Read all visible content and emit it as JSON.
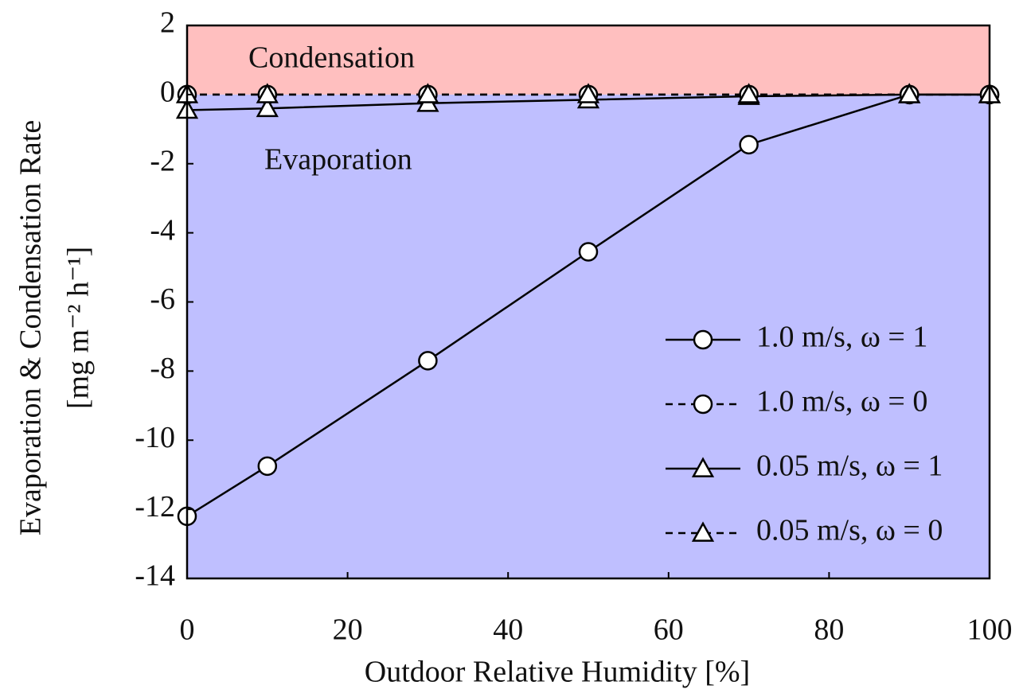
{
  "chart_data": {
    "type": "line",
    "x_label": "Outdoor Relative Humidity [%]",
    "y_label": [
      "Evaporation & Condensation Rate",
      "[mg m⁻² h⁻¹]"
    ],
    "annotations": [
      "Condensation",
      "Evaporation"
    ],
    "region_colors": {
      "above": "#ffbfbf",
      "below": "#bfbfff"
    },
    "x": [
      0,
      10,
      30,
      50,
      70,
      90,
      100
    ],
    "series": [
      {
        "name": "1.0 m/s, ω = 1",
        "color": "#000000",
        "dash": false,
        "marker": "circle",
        "values": [
          -12.2,
          -10.75,
          -7.7,
          -4.55,
          -1.45,
          0,
          0
        ]
      },
      {
        "name": "1.0 m/s, ω = 0",
        "color": "#000000",
        "dash": true,
        "marker": "circle",
        "values": [
          0,
          0,
          0,
          0,
          0,
          0,
          0
        ]
      },
      {
        "name": "0.05 m/s, ω = 1",
        "color": "#000000",
        "dash": false,
        "marker": "triangle",
        "values": [
          -0.45,
          -0.4,
          -0.25,
          -0.15,
          -0.05,
          0,
          0
        ]
      },
      {
        "name": "0.05 m/s, ω = 0",
        "color": "#000000",
        "dash": true,
        "marker": "triangle",
        "values": [
          0,
          0,
          0,
          0,
          0,
          0,
          0
        ]
      }
    ],
    "xlim": [
      0,
      100
    ],
    "xticks": [
      0,
      20,
      40,
      60,
      80,
      100
    ],
    "ylim": [
      -14,
      2
    ],
    "yticks": [
      2,
      0,
      -2,
      -4,
      -6,
      -8,
      -10,
      -12,
      -14
    ],
    "grid": false,
    "legend": "lower right"
  }
}
